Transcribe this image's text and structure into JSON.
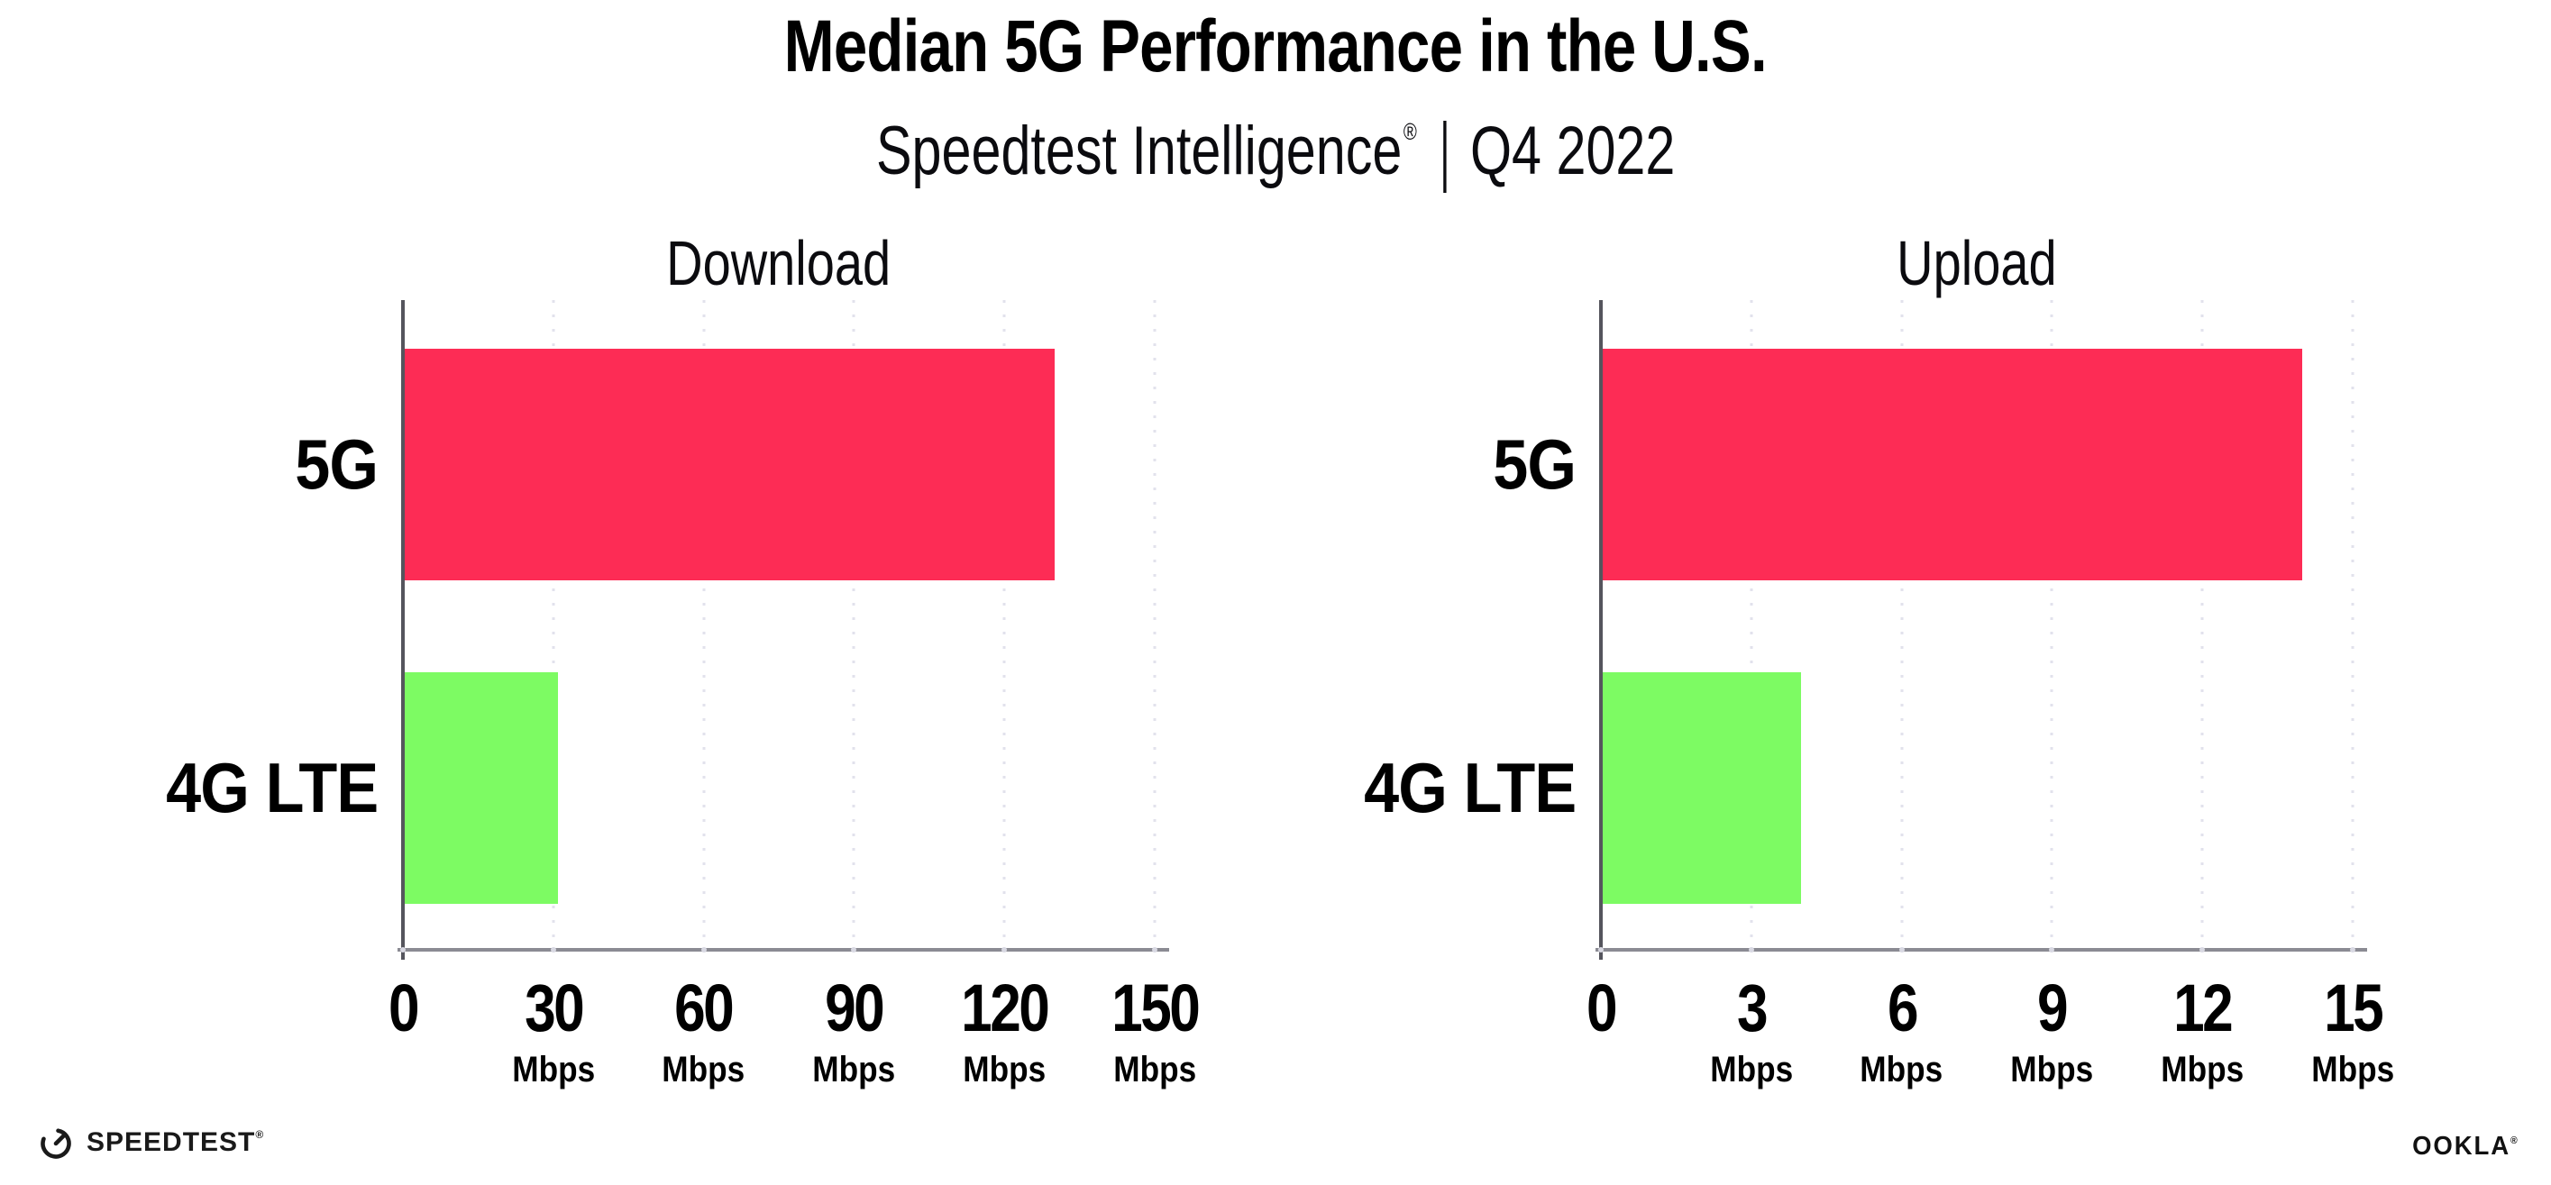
{
  "header": {
    "title": "Median 5G Performance in the U.S.",
    "subtitle_brand": "Speedtest Intelligence",
    "reg_mark": "®",
    "subtitle_sep": "|",
    "subtitle_period": "Q4 2022"
  },
  "colors": {
    "bar_5g": "#fd2c55",
    "bar_4g_lte": "#7dfb63",
    "gridline": "#e2e2ec",
    "x_axis": "#8b8b93",
    "y_axis": "#55555d",
    "text": "#000000"
  },
  "charts": [
    {
      "title": "Download",
      "unit": "Mbps",
      "xmax": 150,
      "bars": [
        {
          "label": "5G",
          "value": 130,
          "color": "#fd2c55"
        },
        {
          "label": "4G LTE",
          "value": 31,
          "color": "#7dfb63"
        }
      ],
      "ticks": [
        {
          "label": "0",
          "unit": ""
        },
        {
          "label": "30",
          "unit": "Mbps"
        },
        {
          "label": "60",
          "unit": "Mbps"
        },
        {
          "label": "90",
          "unit": "Mbps"
        },
        {
          "label": "120",
          "unit": "Mbps"
        },
        {
          "label": "150",
          "unit": "Mbps"
        }
      ]
    },
    {
      "title": "Upload",
      "unit": "Mbps",
      "xmax": 15,
      "bars": [
        {
          "label": "5G",
          "value": 14,
          "color": "#fd2c55"
        },
        {
          "label": "4G LTE",
          "value": 4,
          "color": "#7dfb63"
        }
      ],
      "ticks": [
        {
          "label": "0",
          "unit": ""
        },
        {
          "label": "3",
          "unit": "Mbps"
        },
        {
          "label": "6",
          "unit": "Mbps"
        },
        {
          "label": "9",
          "unit": "Mbps"
        },
        {
          "label": "12",
          "unit": "Mbps"
        },
        {
          "label": "15",
          "unit": "Mbps"
        }
      ]
    }
  ],
  "footer": {
    "speedtest_label": "SPEEDTEST",
    "speedtest_icon": "speedtest-gauge-icon",
    "ookla_label": "OOKLA",
    "reg_mark": "®"
  },
  "chart_data": [
    {
      "type": "bar",
      "orientation": "horizontal",
      "figure_title": "Median 5G Performance in the U.S.",
      "figure_subtitle": "Speedtest Intelligence® | Q4 2022",
      "title": "Download",
      "categories": [
        "5G",
        "4G LTE"
      ],
      "values": [
        130,
        31
      ],
      "xlabel": "Mbps",
      "ylabel": "",
      "xlim": [
        0,
        150
      ],
      "xticks": [
        0,
        30,
        60,
        90,
        120,
        150
      ],
      "grid": "vertical dotted",
      "legend": "none",
      "bar_colors": [
        "#fd2c55",
        "#7dfb63"
      ]
    },
    {
      "type": "bar",
      "orientation": "horizontal",
      "figure_title": "Median 5G Performance in the U.S.",
      "figure_subtitle": "Speedtest Intelligence® | Q4 2022",
      "title": "Upload",
      "categories": [
        "5G",
        "4G LTE"
      ],
      "values": [
        14,
        4
      ],
      "xlabel": "Mbps",
      "ylabel": "",
      "xlim": [
        0,
        15
      ],
      "xticks": [
        0,
        3,
        6,
        9,
        12,
        15
      ],
      "grid": "vertical dotted",
      "legend": "none",
      "bar_colors": [
        "#fd2c55",
        "#7dfb63"
      ]
    }
  ]
}
